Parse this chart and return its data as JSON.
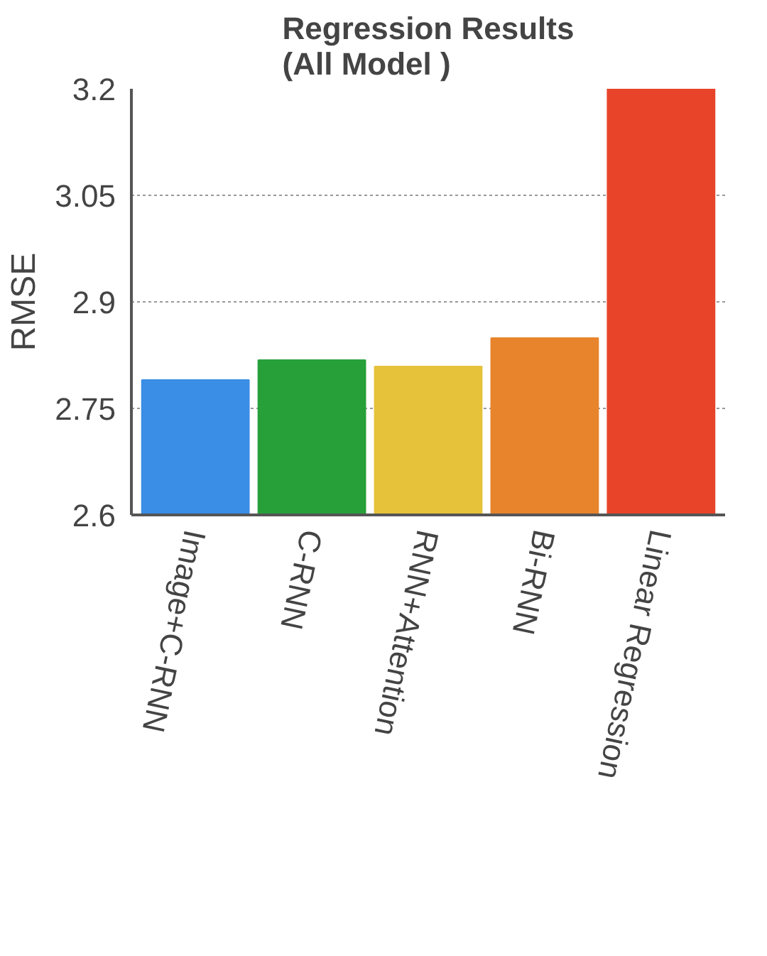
{
  "chart_data": {
    "type": "bar",
    "title": "Regression Results\n(All Model )",
    "ylabel": "RMSE",
    "categories": [
      "Image+C-RNN",
      "C-RNN",
      "RNN+Attention",
      "Bi-RNN",
      "Linear Regression"
    ],
    "values": [
      2.79,
      2.818,
      2.809,
      2.849,
      3.2
    ],
    "colors": [
      "#3a8ee6",
      "#27a03a",
      "#e6c23a",
      "#e8842c",
      "#e8442a"
    ],
    "ylim": [
      2.6,
      3.2
    ],
    "yticks": [
      2.6,
      2.75,
      2.9,
      3.05,
      3.2
    ],
    "grid": "y"
  }
}
